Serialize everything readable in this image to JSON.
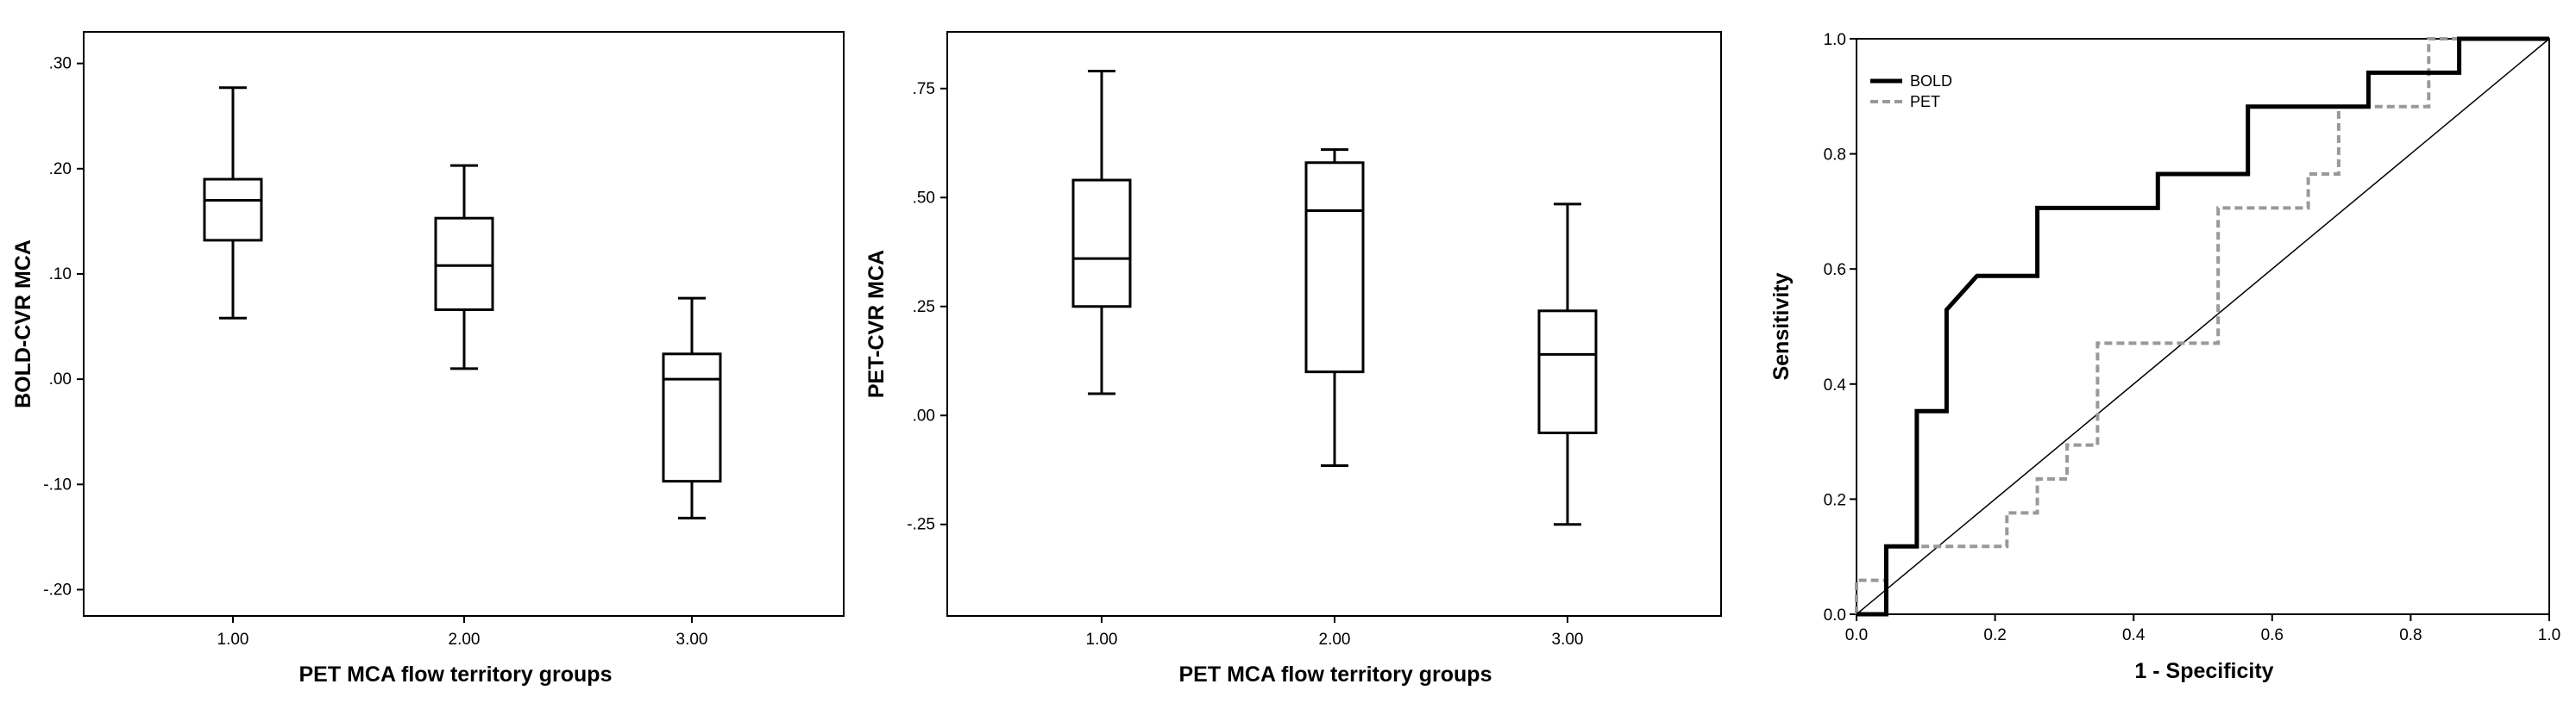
{
  "chart_data": [
    {
      "type": "box",
      "xlabel": "PET MCA flow territory groups",
      "ylabel": "BOLD-CVR MCA",
      "categories": [
        "1.00",
        "2.00",
        "3.00"
      ],
      "ylim": [
        -0.225,
        0.33
      ],
      "yticks": [
        0.3,
        0.2,
        0.1,
        0.0,
        -0.1,
        -0.2
      ],
      "ytick_labels": [
        ".30",
        ".20",
        ".10",
        ".00",
        "-.10",
        "-.20"
      ],
      "boxes": [
        {
          "category": "1.00",
          "min": 0.058,
          "q1": 0.132,
          "median": 0.17,
          "q3": 0.19,
          "max": 0.277
        },
        {
          "category": "2.00",
          "min": 0.01,
          "q1": 0.066,
          "median": 0.108,
          "q3": 0.153,
          "max": 0.203
        },
        {
          "category": "3.00",
          "min": -0.132,
          "q1": -0.097,
          "median": 0.0,
          "q3": 0.024,
          "max": 0.077
        }
      ]
    },
    {
      "type": "box",
      "xlabel": "PET MCA flow territory groups",
      "ylabel": "PET-CVR MCA",
      "categories": [
        "1.00",
        "2.00",
        "3.00"
      ],
      "ylim": [
        -0.46,
        0.88
      ],
      "yticks": [
        0.75,
        0.5,
        0.25,
        0.0,
        -0.25
      ],
      "ytick_labels": [
        ".75",
        ".50",
        ".25",
        ".00",
        "-.25"
      ],
      "boxes": [
        {
          "category": "1.00",
          "min": 0.05,
          "q1": 0.25,
          "median": 0.36,
          "q3": 0.54,
          "max": 0.79
        },
        {
          "category": "2.00",
          "min": -0.115,
          "q1": 0.1,
          "median": 0.47,
          "q3": 0.58,
          "max": 0.61
        },
        {
          "category": "3.00",
          "min": -0.25,
          "q1": -0.04,
          "median": 0.14,
          "q3": 0.24,
          "max": 0.485
        }
      ]
    },
    {
      "type": "line",
      "xlabel": "1 - Specificity",
      "ylabel": "Sensitivity",
      "xlim": [
        0,
        1
      ],
      "ylim": [
        0,
        1
      ],
      "xticks": [
        0.0,
        0.2,
        0.4,
        0.6,
        0.8,
        1.0
      ],
      "yticks": [
        0.0,
        0.2,
        0.4,
        0.6,
        0.8,
        1.0
      ],
      "xtick_labels": [
        "0.0",
        "0.2",
        "0.4",
        "0.6",
        "0.8",
        "1.0"
      ],
      "ytick_labels": [
        "0.0",
        "0.2",
        "0.4",
        "0.6",
        "0.8",
        "1.0"
      ],
      "legend": "top-left",
      "series": [
        {
          "name": "BOLD",
          "color": "#000000",
          "style": "solid",
          "x": [
            0,
            0.043,
            0.043,
            0.087,
            0.087,
            0.13,
            0.13,
            0.174,
            0.174,
            0.261,
            0.261,
            0.435,
            0.435,
            0.565,
            0.565,
            0.739,
            0.739,
            0.87,
            0.87,
            1.0
          ],
          "y": [
            0,
            0,
            0.118,
            0.118,
            0.353,
            0.353,
            0.529,
            0.588,
            0.588,
            0.588,
            0.706,
            0.706,
            0.765,
            0.765,
            0.882,
            0.882,
            0.941,
            0.941,
            1.0,
            1.0
          ]
        },
        {
          "name": "PET",
          "color": "#999999",
          "style": "dashed",
          "x": [
            0,
            0,
            0.043,
            0.043,
            0.217,
            0.217,
            0.261,
            0.261,
            0.304,
            0.304,
            0.348,
            0.348,
            0.522,
            0.522,
            0.652,
            0.652,
            0.696,
            0.696,
            0.826,
            0.826,
            1.0
          ],
          "y": [
            0,
            0.059,
            0.059,
            0.118,
            0.118,
            0.176,
            0.176,
            0.235,
            0.235,
            0.294,
            0.294,
            0.471,
            0.471,
            0.706,
            0.706,
            0.765,
            0.765,
            0.882,
            0.882,
            1.0,
            1.0
          ]
        }
      ],
      "reference_line": {
        "x": [
          0,
          1
        ],
        "y": [
          0,
          1
        ],
        "color": "#000000"
      }
    }
  ]
}
